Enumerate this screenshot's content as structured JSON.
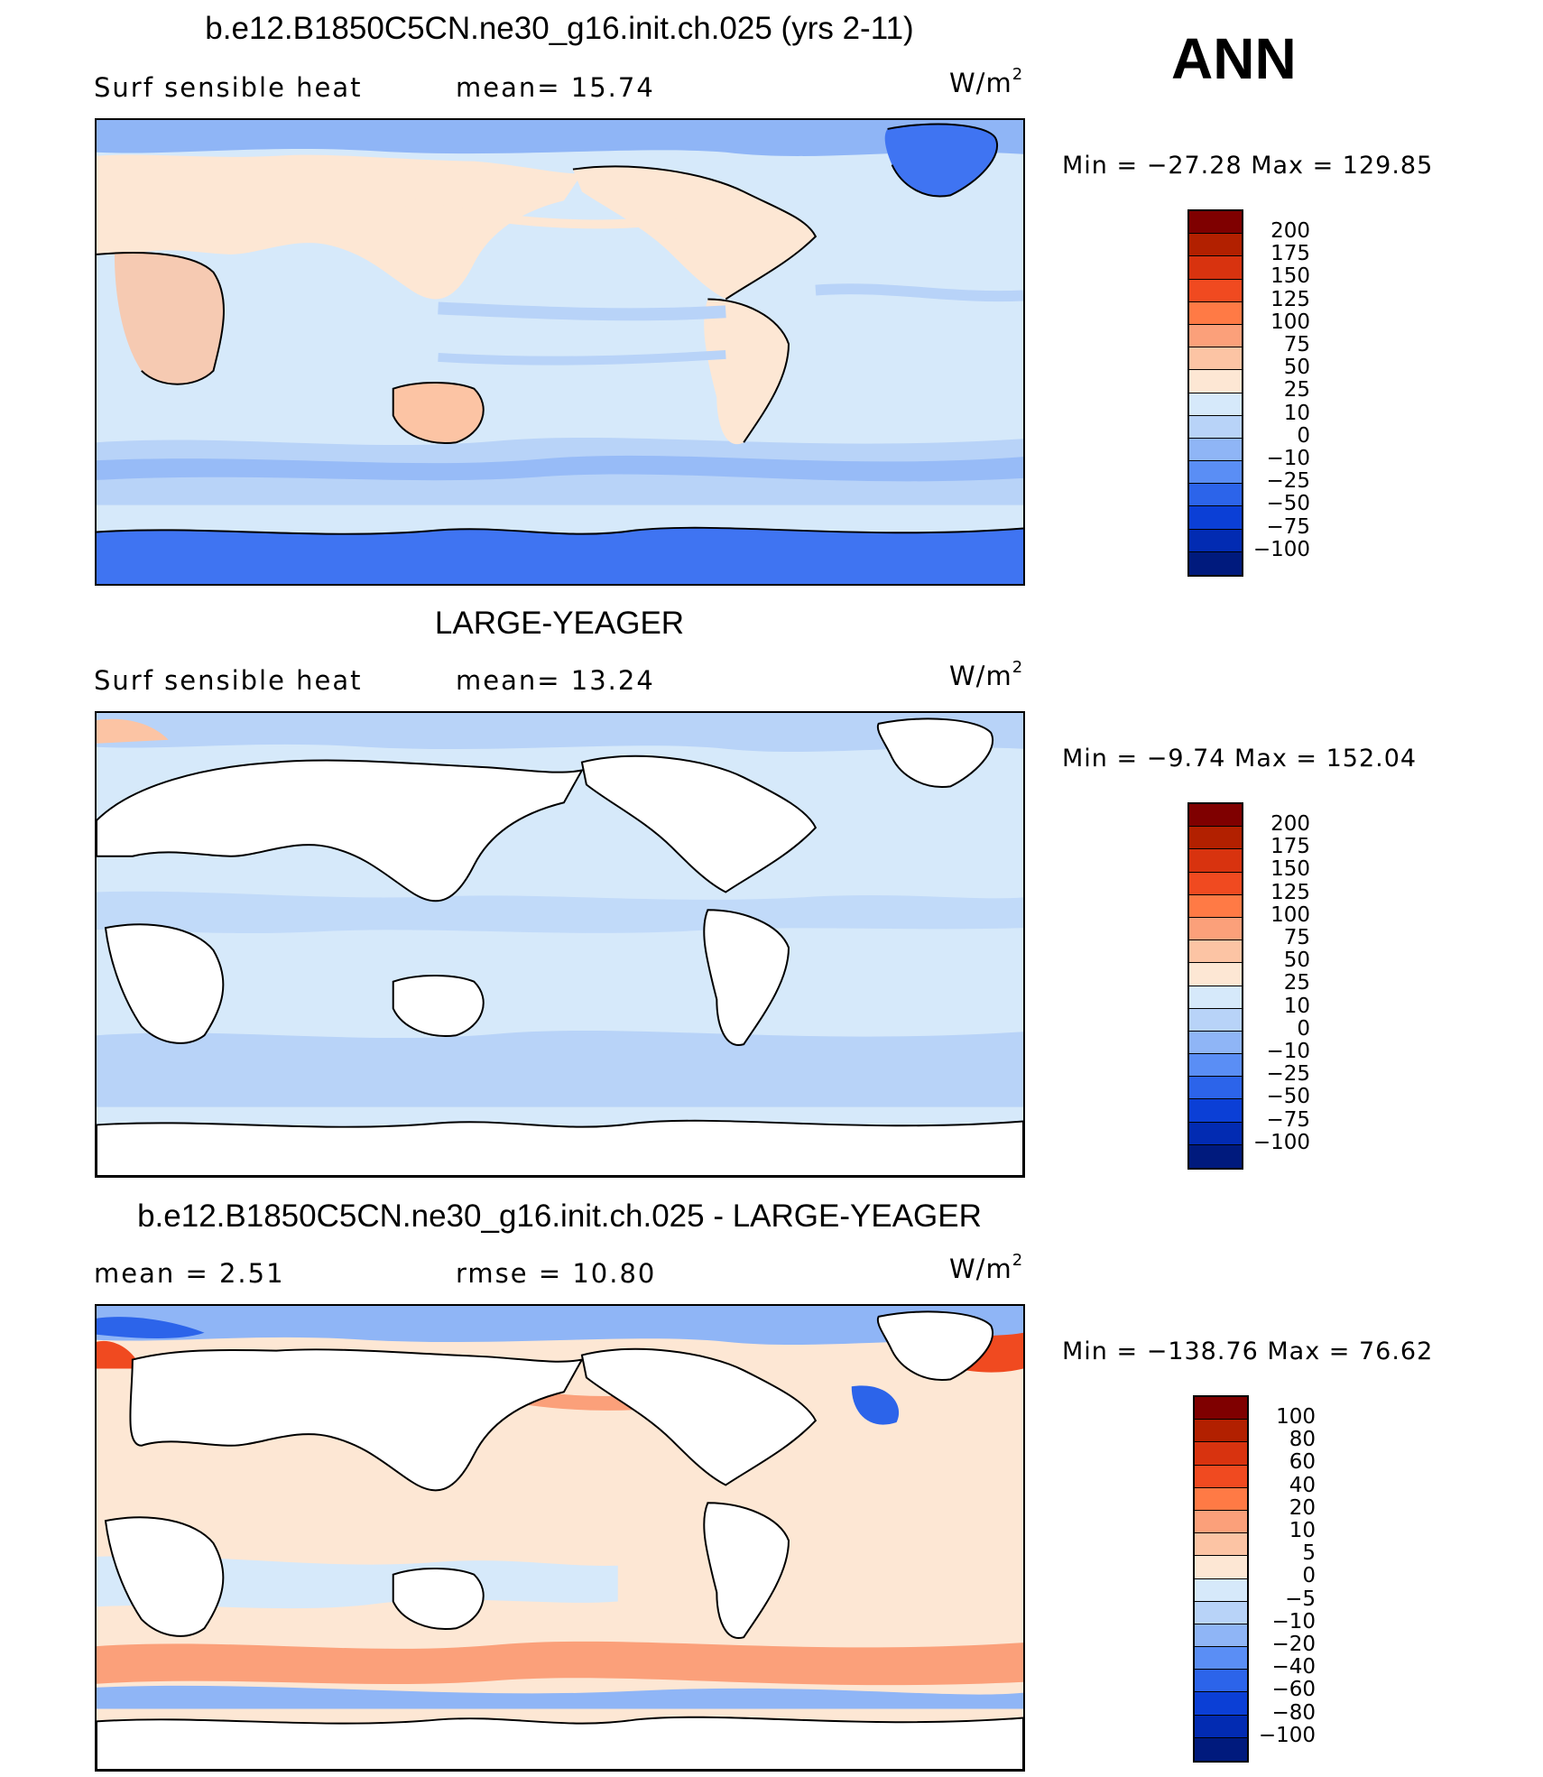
{
  "season": "ANN",
  "panels": [
    {
      "title": "b.e12.B1850C5CN.ne30_g16.init.ch.025 (yrs 2-11)",
      "variable": "Surf  sensible  heat",
      "stat1": "mean=   15.74",
      "stat2": "",
      "units": "W/m",
      "units_sup": "2",
      "minmax": "Min  =  −27.28  Max  =  129.85",
      "levels": [
        "200",
        "175",
        "150",
        "125",
        "100",
        "75",
        "50",
        "25",
        "10",
        "0",
        "−10",
        "−25",
        "−50",
        "−75",
        "−100"
      ],
      "colors": [
        "#7f0000",
        "#b22000",
        "#d8330f",
        "#f04a20",
        "#ff7a45",
        "#fba07a",
        "#fcc4a4",
        "#fde7d4",
        "#d6e9fa",
        "#b8d3f8",
        "#8fb5f6",
        "#5a8ef5",
        "#2c64ea",
        "#0b3fd6",
        "#022bb2",
        "#001a7d"
      ],
      "land_filled": true
    },
    {
      "title": "LARGE-YEAGER",
      "variable": "Surf  sensible  heat",
      "stat1": "mean=   13.24",
      "stat2": "",
      "units": "W/m",
      "units_sup": "2",
      "minmax": "Min  =    −9.74  Max  =  152.04",
      "levels": [
        "200",
        "175",
        "150",
        "125",
        "100",
        "75",
        "50",
        "25",
        "10",
        "0",
        "−10",
        "−25",
        "−50",
        "−75",
        "−100"
      ],
      "colors": [
        "#7f0000",
        "#b22000",
        "#d8330f",
        "#f04a20",
        "#ff7a45",
        "#fba07a",
        "#fcc4a4",
        "#fde7d4",
        "#d6e9fa",
        "#b8d3f8",
        "#8fb5f6",
        "#5a8ef5",
        "#2c64ea",
        "#0b3fd6",
        "#022bb2",
        "#001a7d"
      ],
      "land_filled": false
    },
    {
      "title": "b.e12.B1850C5CN.ne30_g16.init.ch.025 - LARGE-YEAGER",
      "variable": "",
      "stat1": "mean  =      2.51",
      "stat2": "rmse  =     10.80",
      "units": "W/m",
      "units_sup": "2",
      "minmax": "Min  =  −138.76  Max  =     76.62",
      "levels": [
        "100",
        "80",
        "60",
        "40",
        "20",
        "10",
        "5",
        "0",
        "−5",
        "−10",
        "−20",
        "−40",
        "−60",
        "−80",
        "−100"
      ],
      "colors": [
        "#7f0000",
        "#b22000",
        "#d8330f",
        "#f04a20",
        "#ff7a45",
        "#fba07a",
        "#fcc4a4",
        "#fde7d4",
        "#d6e9fa",
        "#b8d3f8",
        "#8fb5f6",
        "#5a8ef5",
        "#2c64ea",
        "#0b3fd6",
        "#022bb2",
        "#001a7d"
      ],
      "land_filled": false
    }
  ]
}
